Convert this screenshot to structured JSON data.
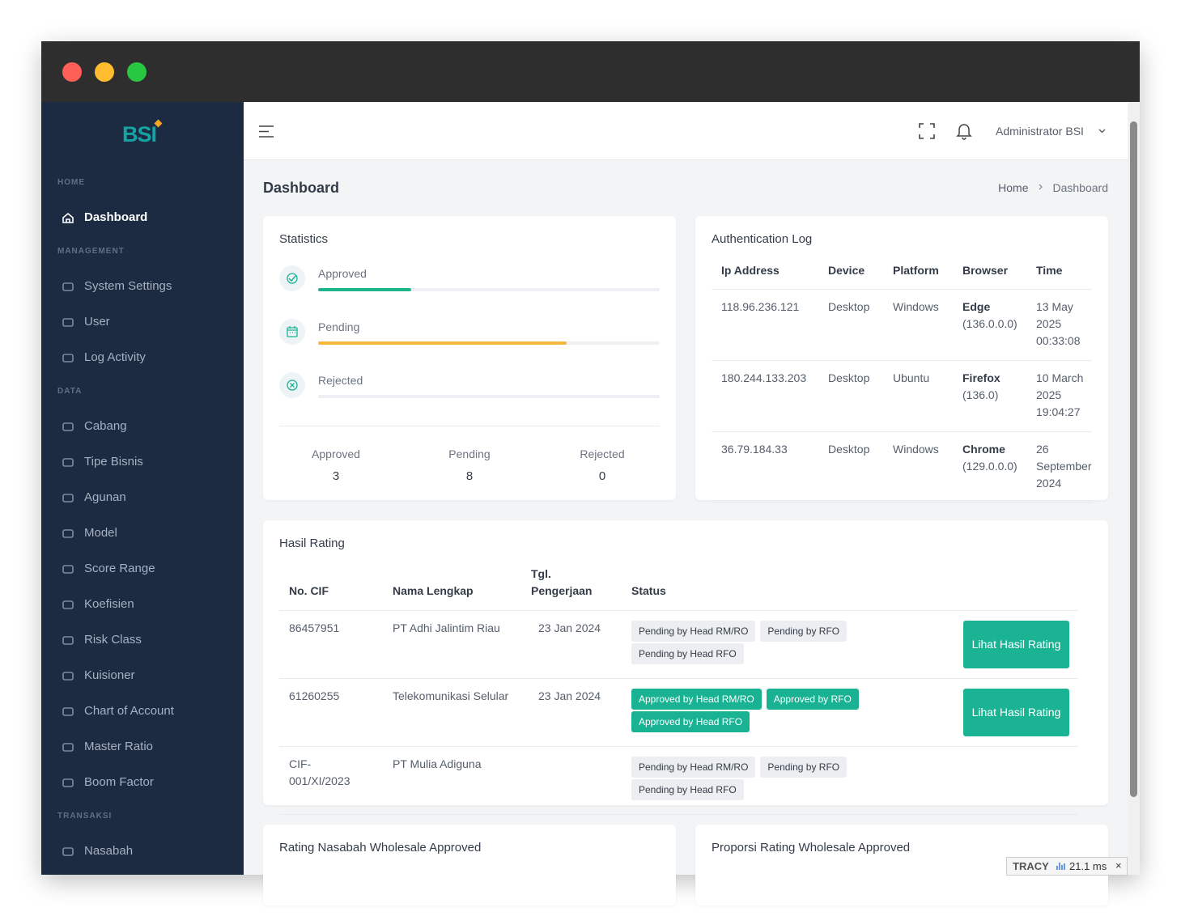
{
  "sidebar": {
    "logo": "BSI",
    "sections": [
      {
        "label": "HOME",
        "items": [
          "Dashboard"
        ]
      },
      {
        "label": "MANAGEMENT",
        "items": [
          "System Settings",
          "User",
          "Log Activity"
        ]
      },
      {
        "label": "DATA",
        "items": [
          "Cabang",
          "Tipe Bisnis",
          "Agunan",
          "Model",
          "Score Range",
          "Koefisien",
          "Risk Class",
          "Kuisioner",
          "Chart of Account",
          "Master Ratio",
          "Boom Factor"
        ]
      },
      {
        "label": "TRANSAKSI",
        "items": [
          "Nasabah"
        ]
      }
    ]
  },
  "topbar": {
    "user": "Administrator BSI"
  },
  "page": {
    "title": "Dashboard",
    "breadcrumb": [
      "Home",
      "Dashboard"
    ]
  },
  "statistics": {
    "title": "Statistics",
    "items": [
      {
        "label": "Approved",
        "value": 3,
        "color": "#1db48b"
      },
      {
        "label": "Pending",
        "value": 8,
        "color": "#f5b83d"
      },
      {
        "label": "Rejected",
        "value": 0,
        "color": "#e05b5b"
      }
    ]
  },
  "auth_log": {
    "title": "Authentication Log",
    "columns": [
      "Ip Address",
      "Device",
      "Platform",
      "Browser",
      "Time"
    ],
    "rows": [
      {
        "ip": "118.96.236.121",
        "device": "Desktop",
        "platform": "Windows",
        "browser": "Edge",
        "version": "(136.0.0.0)",
        "time": "13 May 2025 00:33:08"
      },
      {
        "ip": "180.244.133.203",
        "device": "Desktop",
        "platform": "Ubuntu",
        "browser": "Firefox",
        "version": "(136.0)",
        "time": "10 March 2025 19:04:27"
      },
      {
        "ip": "36.79.184.33",
        "device": "Desktop",
        "platform": "Windows",
        "browser": "Chrome",
        "version": "(129.0.0.0)",
        "time": "26 September 2024"
      }
    ]
  },
  "hasil_rating": {
    "title": "Hasil Rating",
    "columns": [
      "No. CIF",
      "Nama Lengkap",
      "Tgl. Pengerjaan",
      "Status"
    ],
    "rows": [
      {
        "cif": "86457951",
        "name": "PT Adhi Jalintim Riau",
        "date": "23 Jan 2024",
        "statuses": [
          "Pending by Head RM/RO",
          "Pending by RFO",
          "Pending by Head RFO"
        ],
        "badge_color": "#eceef1",
        "badge_text_color": "#333c48",
        "action": "Lihat Hasil Rating"
      },
      {
        "cif": "61260255",
        "name": "Telekomunikasi Selular",
        "date": "23 Jan 2024",
        "statuses": [
          "Approved by Head RM/RO",
          "Approved by RFO",
          "Approved by Head RFO"
        ],
        "badge_color": "#19b394",
        "badge_text_color": "#ffffff",
        "action": "Lihat Hasil Rating"
      },
      {
        "cif": "CIF-001/XI/2023",
        "name": "PT Mulia Adiguna",
        "statuses": [
          "Pending by Head RM/RO",
          "Pending by RFO",
          "Pending by Head RFO"
        ],
        "badge_color": "#eceef1",
        "badge_text_color": "#333c48"
      }
    ]
  },
  "bottom_cards": [
    "Rating Nasabah Wholesale Approved",
    "Proporsi Rating Wholesale Approved"
  ],
  "debug_bar": {
    "label": "TRACY",
    "time": "21.1 ms"
  }
}
